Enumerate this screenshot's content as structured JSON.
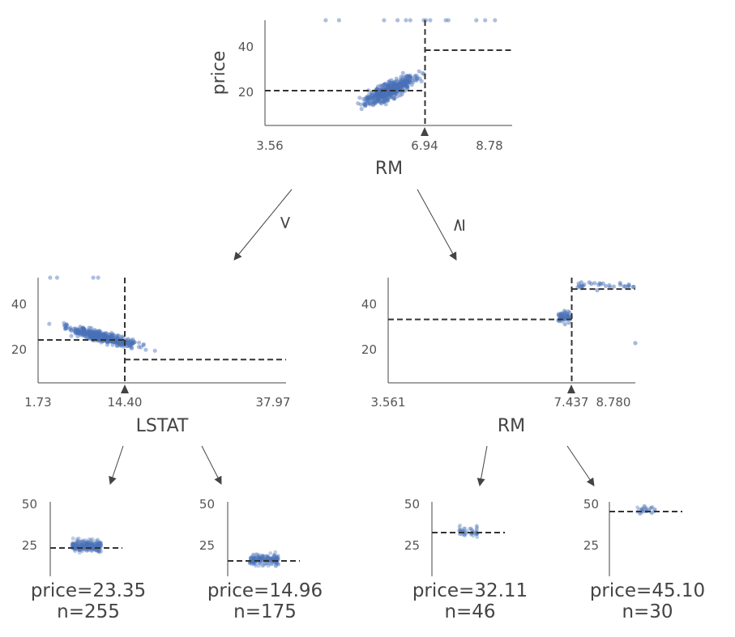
{
  "colors": {
    "dot": "#4a72b8",
    "split": "#333333",
    "axis": "#444444",
    "text": "#444444"
  },
  "edges": {
    "left_label": "<",
    "right_label": "≥"
  },
  "chart_data": [
    {
      "id": "root",
      "type": "scatter",
      "title": "",
      "xlabel": "RM",
      "ylabel": "price",
      "xlim": [
        3.56,
        8.78
      ],
      "ylim": [
        5,
        50
      ],
      "xticks": [
        "3.56",
        "6.94",
        "8.78"
      ],
      "xtick_values": [
        3.56,
        6.94,
        8.78
      ],
      "yticks": [
        "20",
        "40"
      ],
      "ytick_values": [
        20,
        40
      ],
      "split": 6.94,
      "split_label": "6.94",
      "left_mean": 19.9,
      "right_mean": 37.2
    },
    {
      "id": "left",
      "type": "scatter",
      "title": "",
      "xlabel": "LSTAT",
      "ylabel": "",
      "xlim": [
        1.73,
        37.97
      ],
      "ylim": [
        5,
        50
      ],
      "xticks": [
        "1.73",
        "14.40",
        "37.97"
      ],
      "xtick_values": [
        1.73,
        14.4,
        37.97
      ],
      "yticks": [
        "20",
        "40"
      ],
      "ytick_values": [
        20,
        40
      ],
      "split": 14.4,
      "split_label": "14.40",
      "left_mean": 23.35,
      "right_mean": 14.96
    },
    {
      "id": "right",
      "type": "scatter",
      "title": "",
      "xlabel": "RM",
      "ylabel": "",
      "xlim": [
        3.561,
        8.78
      ],
      "ylim": [
        5,
        50
      ],
      "xticks": [
        "3.561",
        "7.437",
        "8.780"
      ],
      "xtick_values": [
        3.561,
        7.437,
        8.78
      ],
      "yticks": [
        "20",
        "40"
      ],
      "ytick_values": [
        20,
        40
      ],
      "split": 7.437,
      "split_label": "7.437",
      "left_mean": 32.11,
      "right_mean": 45.1
    },
    {
      "id": "leaf1",
      "type": "scatter",
      "ylim": [
        5,
        50
      ],
      "yticks": [
        "25",
        "50"
      ],
      "ytick_values": [
        25,
        50
      ],
      "mean": 23.35,
      "label_line1": "price=23.35",
      "label_line2": "n=255",
      "n": 255,
      "spread": 12
    },
    {
      "id": "leaf2",
      "type": "scatter",
      "ylim": [
        5,
        50
      ],
      "yticks": [
        "25",
        "50"
      ],
      "ytick_values": [
        25,
        50
      ],
      "mean": 14.96,
      "label_line1": "price=14.96",
      "label_line2": "n=175",
      "n": 175,
      "spread": 12
    },
    {
      "id": "leaf3",
      "type": "scatter",
      "ylim": [
        5,
        50
      ],
      "yticks": [
        "25",
        "50"
      ],
      "ytick_values": [
        25,
        50
      ],
      "mean": 32.11,
      "label_line1": "price=32.11",
      "label_line2": "n=46",
      "n": 46,
      "spread": 12
    },
    {
      "id": "leaf4",
      "type": "scatter",
      "ylim": [
        5,
        50
      ],
      "yticks": [
        "25",
        "50"
      ],
      "ytick_values": [
        25,
        50
      ],
      "mean": 45.1,
      "label_line1": "price=45.10",
      "label_line2": "n=30",
      "n": 30,
      "spread": 12
    }
  ]
}
